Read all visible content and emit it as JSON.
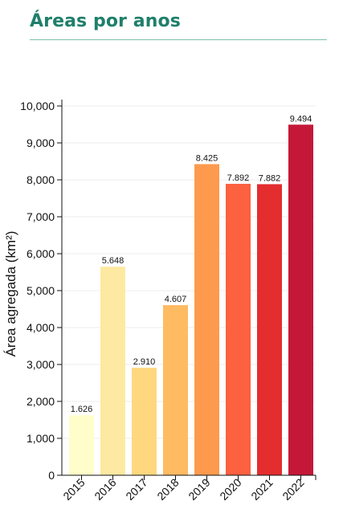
{
  "header": {
    "title": "Áreas por anos"
  },
  "chart_data": {
    "type": "bar",
    "categories": [
      "2015",
      "2016",
      "2017",
      "2018",
      "2019",
      "2020",
      "2021",
      "2022"
    ],
    "values": [
      1626,
      5648,
      2910,
      4607,
      8425,
      7892,
      7882,
      9494
    ],
    "value_labels": [
      "1.626",
      "5.648",
      "2.910",
      "4.607",
      "8.425",
      "7.892",
      "7.882",
      "9.494"
    ],
    "colors": [
      "#fffdc9",
      "#fde9a1",
      "#fed77f",
      "#febb62",
      "#fd9a4e",
      "#fc6140",
      "#e32d2f",
      "#c51838"
    ],
    "ylabel": "Área agregada (km²)",
    "xlabel": "",
    "ylim": [
      0,
      10000
    ],
    "yticks": [
      0,
      1000,
      2000,
      3000,
      4000,
      5000,
      6000,
      7000,
      8000,
      9000,
      10000
    ],
    "ytick_labels": [
      "0",
      "1,000",
      "2,000",
      "3,000",
      "4,000",
      "5,000",
      "6,000",
      "7,000",
      "8,000",
      "9,000",
      "10,000"
    ],
    "grid": true
  }
}
